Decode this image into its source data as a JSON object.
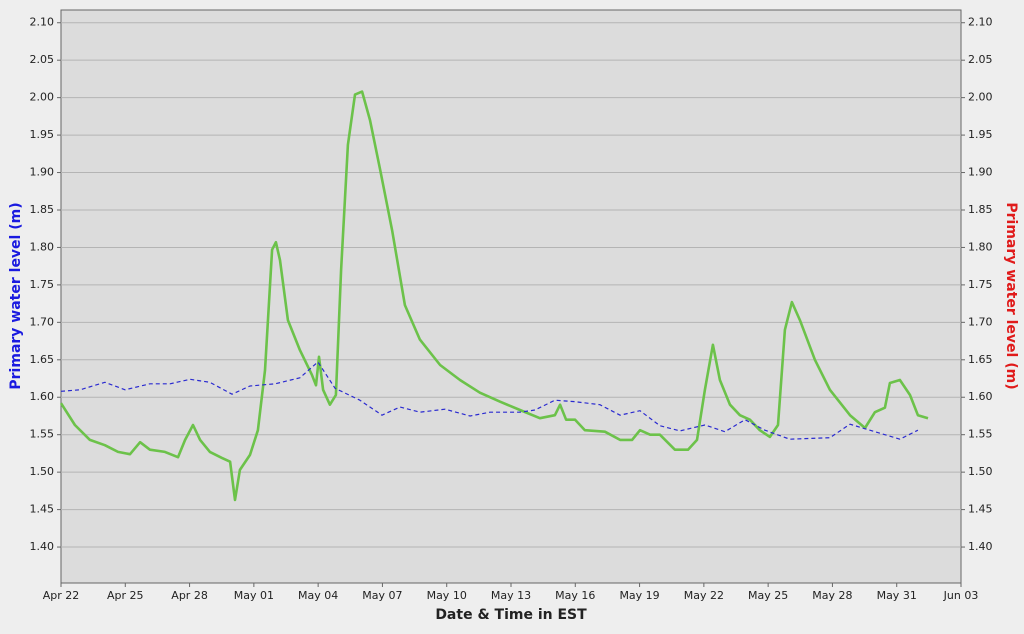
{
  "chart_data": {
    "type": "line",
    "xlabel": "Date & Time in EST",
    "ylabel": "Primary water level (m)",
    "y2label": "Primary water level (m)",
    "xlim": [
      0,
      42
    ],
    "xticks": [
      {
        "value": 0,
        "label": "Apr 22"
      },
      {
        "value": 3,
        "label": "Apr 25"
      },
      {
        "value": 6,
        "label": "Apr 28"
      },
      {
        "value": 9,
        "label": "May 01"
      },
      {
        "value": 12,
        "label": "May 04"
      },
      {
        "value": 15,
        "label": "May 07"
      },
      {
        "value": 18,
        "label": "May 10"
      },
      {
        "value": 21,
        "label": "May 13"
      },
      {
        "value": 24,
        "label": "May 16"
      },
      {
        "value": 27,
        "label": "May 19"
      },
      {
        "value": 30,
        "label": "May 22"
      },
      {
        "value": 33,
        "label": "May 25"
      },
      {
        "value": 36,
        "label": "May 28"
      },
      {
        "value": 39,
        "label": "May 31"
      },
      {
        "value": 42,
        "label": "Jun 03"
      }
    ],
    "ylim": [
      1.352,
      2.117
    ],
    "yticks": [
      {
        "value": 1.4,
        "label": "1.40"
      },
      1.45,
      {
        "value": 1.5,
        "label": "1.50"
      },
      1.55,
      {
        "value": 1.6,
        "label": "1.60"
      },
      1.65,
      {
        "value": 1.7,
        "label": "1.70"
      },
      1.75,
      {
        "value": 1.8,
        "label": "1.80"
      },
      1.85,
      {
        "value": 1.9,
        "label": "1.90"
      },
      1.95,
      {
        "value": 2.0,
        "label": "2.00"
      },
      2.05,
      {
        "value": 2.1,
        "label": "2.10"
      }
    ],
    "y2lim": [
      1.352,
      2.117
    ],
    "y2ticks": [
      {
        "value": 1.4,
        "label": "1.40"
      },
      1.45,
      {
        "value": 1.5,
        "label": "1.50"
      },
      1.55,
      {
        "value": 1.6,
        "label": "1.60"
      },
      1.65,
      {
        "value": 1.7,
        "label": "1.70"
      },
      1.75,
      {
        "value": 1.8,
        "label": "1.80"
      },
      1.85,
      {
        "value": 1.9,
        "label": "1.90"
      },
      1.95,
      {
        "value": 2.0,
        "label": "2.00"
      },
      2.05,
      {
        "value": 2.1,
        "label": "2.10"
      }
    ],
    "grid": true,
    "series": [
      {
        "color": "#6cc24a",
        "style": "solid",
        "x": [
          0,
          0.65,
          1.35,
          2.05,
          2.66,
          3.22,
          3.69,
          4.15,
          4.85,
          5.46,
          5.79,
          6.16,
          6.49,
          6.95,
          7.51,
          7.89,
          8.12,
          8.35,
          8.82,
          9.19,
          9.52,
          9.85,
          10.03,
          10.22,
          10.59,
          11.15,
          11.71,
          11.9,
          12.04,
          12.23,
          12.55,
          12.83,
          13.07,
          13.39,
          13.72,
          14.05,
          14.42,
          14.89,
          15.45,
          16.05,
          16.75,
          17.69,
          18.62,
          19.55,
          20.49,
          21.42,
          22.35,
          23.05,
          23.29,
          23.57,
          23.99,
          24.45,
          25.38,
          26.09,
          26.65,
          27.02,
          27.49,
          27.95,
          28.65,
          29.26,
          29.68,
          30.05,
          30.42,
          30.75,
          31.22,
          31.68,
          32.15,
          32.61,
          33.08,
          33.46,
          33.78,
          34.11,
          34.48,
          35.18,
          35.88,
          36.82,
          37.52,
          37.98,
          38.45,
          38.68,
          39.15,
          39.62,
          39.99,
          40.46
        ],
        "values": [
          1.592,
          1.563,
          1.543,
          1.536,
          1.527,
          1.524,
          1.54,
          1.53,
          1.527,
          1.52,
          1.543,
          1.563,
          1.543,
          1.527,
          1.519,
          1.514,
          1.463,
          1.503,
          1.523,
          1.556,
          1.636,
          1.797,
          1.807,
          1.783,
          1.703,
          1.663,
          1.63,
          1.616,
          1.654,
          1.61,
          1.59,
          1.603,
          1.77,
          1.937,
          2.004,
          2.008,
          1.97,
          1.904,
          1.823,
          1.723,
          1.677,
          1.643,
          1.623,
          1.606,
          1.594,
          1.583,
          1.572,
          1.576,
          1.59,
          1.57,
          1.57,
          1.556,
          1.554,
          1.543,
          1.543,
          1.556,
          1.55,
          1.55,
          1.53,
          1.53,
          1.543,
          1.61,
          1.67,
          1.623,
          1.59,
          1.576,
          1.57,
          1.556,
          1.547,
          1.563,
          1.69,
          1.727,
          1.703,
          1.65,
          1.61,
          1.576,
          1.559,
          1.58,
          1.586,
          1.619,
          1.623,
          1.603,
          1.576,
          1.572
        ]
      },
      {
        "color": "#2a2ad0",
        "style": "dashed",
        "x": [
          0,
          0.89,
          2.05,
          2.99,
          4.15,
          5.09,
          6.02,
          6.95,
          7.98,
          8.82,
          9.99,
          11.15,
          11.99,
          12.79,
          13.95,
          14.98,
          15.82,
          16.75,
          17.92,
          19.09,
          20.02,
          21.42,
          22.12,
          23.05,
          23.99,
          25.15,
          26.09,
          27.02,
          27.95,
          28.88,
          30.05,
          30.98,
          31.92,
          32.85,
          34.01,
          35.88,
          36.82,
          37.75,
          39.15,
          39.99
        ],
        "values": [
          1.608,
          1.61,
          1.62,
          1.61,
          1.618,
          1.618,
          1.624,
          1.62,
          1.604,
          1.615,
          1.618,
          1.626,
          1.647,
          1.612,
          1.596,
          1.576,
          1.587,
          1.58,
          1.584,
          1.575,
          1.58,
          1.58,
          1.583,
          1.596,
          1.594,
          1.59,
          1.576,
          1.582,
          1.562,
          1.555,
          1.563,
          1.554,
          1.57,
          1.556,
          1.544,
          1.546,
          1.564,
          1.556,
          1.544,
          1.556
        ]
      }
    ]
  }
}
